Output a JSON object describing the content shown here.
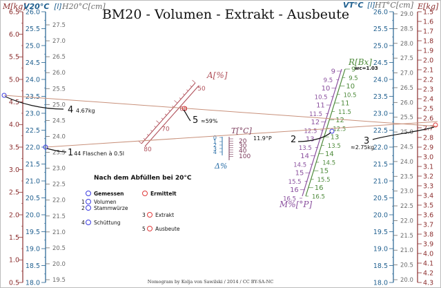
{
  "title": "BM20 - Volumen - Extrakt - Ausbeute",
  "footer": "Nomogram by Kolja von Sawilski / 2014 / CC BY-SA-NC",
  "colors": {
    "mass": "#8b2d2d",
    "volume": "#1f5f8f",
    "volumeT": "#6b6b6b",
    "alc": "#b0505a",
    "plato": "#8a4f9e",
    "brix": "#4d8a3a",
    "temp": "#7a3a5a",
    "delta": "#2a6fa8",
    "line": "#c8907a",
    "measured": "#3a3ae0",
    "computed": "#e03a3a",
    "black": "#111111"
  },
  "axes": {
    "mass_left": {
      "label": "M[kg]",
      "min": 0.5,
      "max": 6.5,
      "step": 0.5
    },
    "vol20": {
      "label_v": "V20°C",
      "label_u": "[l]",
      "min": 18,
      "max": 26,
      "step": 0.5
    },
    "vol20h": {
      "label": "H20°C[cm]",
      "min": 19.5,
      "max": 27.5,
      "step": 0.5
    },
    "volT": {
      "label_v": "VT°C",
      "label_u": "[l]",
      "min": 18,
      "max": 26,
      "step": 0.5
    },
    "volTh": {
      "label": "HT°C[cm]",
      "min": 20,
      "max": 29,
      "step": 0.5
    },
    "mass_right": {
      "label": "E[kg]",
      "min": 1.5,
      "max": 4.3,
      "step": 0.1
    },
    "alc": {
      "label": "A[%]",
      "labels": [
        "50",
        "60",
        "70",
        "80"
      ]
    },
    "temp": {
      "label": "T[°C]",
      "labels": [
        "20",
        "30",
        "40",
        "50",
        "60",
        "70",
        "80",
        "90",
        "100"
      ]
    },
    "delta": {
      "label": "Δ%",
      "labels": [
        "0",
        "1",
        "2",
        "3",
        "4"
      ]
    },
    "brix": {
      "label": "R[Bx]",
      "wc": "wc=1.03"
    },
    "plato": {
      "label": "M%[°P]"
    }
  },
  "markers": {
    "m1": {
      "num": "1",
      "text": "44 Flaschen à 0.5l"
    },
    "m2": {
      "num": "2",
      "text": "11.9°P"
    },
    "m3": {
      "num": "3",
      "text": "≈2.75kg"
    },
    "m4": {
      "num": "4",
      "text": "4.67kg"
    },
    "m5": {
      "num": "5",
      "text": "≈59%"
    }
  },
  "legend": {
    "heading": "Nach dem Abfüllen bei 20°C",
    "measured": "Gemessen",
    "computed": "Ermittelt",
    "items_left": [
      {
        "num": "1",
        "label": "Volumen"
      },
      {
        "num": "2",
        "label": "Stammwürze"
      },
      {
        "num": "4",
        "label": "Schüttung"
      }
    ],
    "items_right": [
      {
        "num": "3",
        "label": "Extrakt"
      },
      {
        "num": "5",
        "label": "Ausbeute"
      }
    ]
  }
}
